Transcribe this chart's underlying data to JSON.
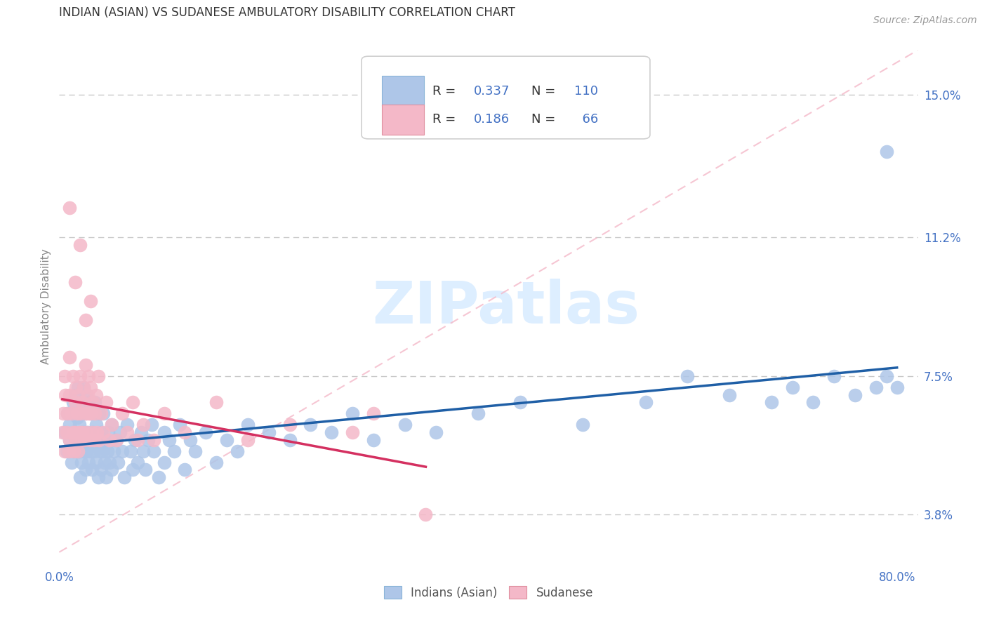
{
  "title": "INDIAN (ASIAN) VS SUDANESE AMBULATORY DISABILITY CORRELATION CHART",
  "source_text": "Source: ZipAtlas.com",
  "ylabel": "Ambulatory Disability",
  "xlim": [
    0.0,
    0.82
  ],
  "ylim": [
    0.025,
    0.162
  ],
  "xticks": [
    0.0,
    0.1,
    0.2,
    0.3,
    0.4,
    0.5,
    0.6,
    0.7,
    0.8
  ],
  "xticklabels": [
    "0.0%",
    "",
    "",
    "",
    "",
    "",
    "",
    "",
    "80.0%"
  ],
  "ytick_positions": [
    0.038,
    0.075,
    0.112,
    0.15
  ],
  "ytick_labels": [
    "3.8%",
    "7.5%",
    "11.2%",
    "15.0%"
  ],
  "grid_color": "#c8c8c8",
  "background_color": "#ffffff",
  "title_color": "#333333",
  "axis_label_color": "#888888",
  "tick_label_color": "#4472c4",
  "indian_color": "#aec6e8",
  "sudanese_color": "#f4b8c8",
  "trend_indian_color": "#1f5fa6",
  "trend_sudanese_color": "#d43060",
  "ref_line_color": "#f4b8c8",
  "R_indian": 0.337,
  "N_indian": 110,
  "R_sudanese": 0.186,
  "N_sudanese": 66,
  "watermark": "ZIPatlas",
  "indian_scatter_x": [
    0.005,
    0.007,
    0.008,
    0.01,
    0.01,
    0.012,
    0.013,
    0.014,
    0.015,
    0.015,
    0.016,
    0.017,
    0.018,
    0.018,
    0.019,
    0.02,
    0.02,
    0.02,
    0.021,
    0.022,
    0.022,
    0.023,
    0.023,
    0.024,
    0.025,
    0.025,
    0.026,
    0.026,
    0.027,
    0.028,
    0.028,
    0.029,
    0.03,
    0.03,
    0.031,
    0.032,
    0.033,
    0.034,
    0.035,
    0.035,
    0.036,
    0.037,
    0.038,
    0.039,
    0.04,
    0.04,
    0.041,
    0.042,
    0.043,
    0.044,
    0.045,
    0.046,
    0.047,
    0.048,
    0.05,
    0.05,
    0.052,
    0.054,
    0.056,
    0.058,
    0.06,
    0.062,
    0.065,
    0.068,
    0.07,
    0.072,
    0.075,
    0.078,
    0.08,
    0.082,
    0.085,
    0.088,
    0.09,
    0.095,
    0.1,
    0.1,
    0.105,
    0.11,
    0.115,
    0.12,
    0.125,
    0.13,
    0.14,
    0.15,
    0.16,
    0.17,
    0.18,
    0.2,
    0.22,
    0.24,
    0.26,
    0.28,
    0.3,
    0.33,
    0.36,
    0.4,
    0.44,
    0.5,
    0.56,
    0.6,
    0.64,
    0.68,
    0.7,
    0.72,
    0.74,
    0.76,
    0.78,
    0.79,
    0.8,
    0.79
  ],
  "indian_scatter_y": [
    0.06,
    0.055,
    0.065,
    0.058,
    0.062,
    0.052,
    0.068,
    0.055,
    0.06,
    0.07,
    0.058,
    0.064,
    0.055,
    0.072,
    0.062,
    0.048,
    0.055,
    0.065,
    0.052,
    0.06,
    0.068,
    0.055,
    0.072,
    0.06,
    0.05,
    0.065,
    0.055,
    0.07,
    0.06,
    0.052,
    0.068,
    0.057,
    0.055,
    0.065,
    0.05,
    0.06,
    0.055,
    0.068,
    0.052,
    0.062,
    0.058,
    0.048,
    0.065,
    0.055,
    0.05,
    0.06,
    0.055,
    0.065,
    0.052,
    0.058,
    0.048,
    0.055,
    0.06,
    0.052,
    0.05,
    0.062,
    0.055,
    0.058,
    0.052,
    0.06,
    0.055,
    0.048,
    0.062,
    0.055,
    0.05,
    0.058,
    0.052,
    0.06,
    0.055,
    0.05,
    0.058,
    0.062,
    0.055,
    0.048,
    0.06,
    0.052,
    0.058,
    0.055,
    0.062,
    0.05,
    0.058,
    0.055,
    0.06,
    0.052,
    0.058,
    0.055,
    0.062,
    0.06,
    0.058,
    0.062,
    0.06,
    0.065,
    0.058,
    0.062,
    0.06,
    0.065,
    0.068,
    0.062,
    0.068,
    0.075,
    0.07,
    0.068,
    0.072,
    0.068,
    0.075,
    0.07,
    0.072,
    0.075,
    0.072,
    0.135
  ],
  "sudanese_scatter_x": [
    0.003,
    0.004,
    0.005,
    0.006,
    0.007,
    0.008,
    0.009,
    0.01,
    0.01,
    0.01,
    0.012,
    0.013,
    0.013,
    0.014,
    0.015,
    0.015,
    0.016,
    0.016,
    0.017,
    0.018,
    0.018,
    0.019,
    0.02,
    0.02,
    0.021,
    0.022,
    0.022,
    0.023,
    0.024,
    0.025,
    0.025,
    0.026,
    0.027,
    0.028,
    0.028,
    0.029,
    0.03,
    0.03,
    0.031,
    0.032,
    0.033,
    0.034,
    0.035,
    0.036,
    0.037,
    0.038,
    0.04,
    0.042,
    0.045,
    0.048,
    0.05,
    0.055,
    0.06,
    0.065,
    0.07,
    0.075,
    0.08,
    0.09,
    0.1,
    0.12,
    0.15,
    0.18,
    0.22,
    0.28,
    0.3,
    0.35
  ],
  "sudanese_scatter_y": [
    0.06,
    0.065,
    0.055,
    0.07,
    0.06,
    0.065,
    0.055,
    0.058,
    0.07,
    0.08,
    0.065,
    0.06,
    0.075,
    0.055,
    0.068,
    0.06,
    0.072,
    0.058,
    0.065,
    0.055,
    0.07,
    0.06,
    0.065,
    0.075,
    0.058,
    0.068,
    0.06,
    0.072,
    0.058,
    0.065,
    0.078,
    0.06,
    0.07,
    0.065,
    0.075,
    0.058,
    0.065,
    0.072,
    0.06,
    0.068,
    0.058,
    0.065,
    0.07,
    0.06,
    0.075,
    0.058,
    0.065,
    0.06,
    0.068,
    0.058,
    0.062,
    0.058,
    0.065,
    0.06,
    0.068,
    0.058,
    0.062,
    0.058,
    0.065,
    0.06,
    0.068,
    0.058,
    0.062,
    0.06,
    0.065,
    0.038
  ],
  "sudanese_outliers_x": [
    0.005,
    0.01,
    0.015,
    0.02,
    0.025,
    0.03
  ],
  "sudanese_outliers_y": [
    0.075,
    0.12,
    0.1,
    0.11,
    0.09,
    0.095
  ]
}
